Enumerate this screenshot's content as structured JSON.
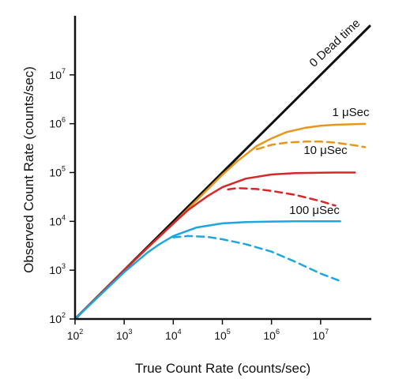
{
  "chart_data": {
    "type": "line",
    "xlabel": "True Count Rate (counts/sec)",
    "ylabel": "Observed Count Rate (counts/sec)",
    "x_scale": "log",
    "y_scale": "log",
    "xlim": [
      100,
      100000000
    ],
    "ylim": [
      100,
      100000000
    ],
    "grid": false,
    "x_ticks": [
      {
        "base": "10",
        "exp": "2",
        "value": 100
      },
      {
        "base": "10",
        "exp": "3",
        "value": 1000
      },
      {
        "base": "10",
        "exp": "4",
        "value": 10000
      },
      {
        "base": "10",
        "exp": "5",
        "value": 100000
      },
      {
        "base": "10",
        "exp": "6",
        "value": 1000000
      },
      {
        "base": "10",
        "exp": "7",
        "value": 10000000
      }
    ],
    "y_ticks": [
      {
        "base": "10",
        "exp": "2",
        "value": 100
      },
      {
        "base": "10",
        "exp": "3",
        "value": 1000
      },
      {
        "base": "10",
        "exp": "4",
        "value": 10000
      },
      {
        "base": "10",
        "exp": "5",
        "value": 100000
      },
      {
        "base": "10",
        "exp": "6",
        "value": 1000000
      },
      {
        "base": "10",
        "exp": "7",
        "value": 10000000
      }
    ],
    "series": [
      {
        "name": "0 Dead time",
        "color": "#111111",
        "style": "solid",
        "x": [
          100,
          100000000
        ],
        "y": [
          100,
          100000000
        ]
      },
      {
        "name": "1 μSec",
        "color": "#e8961c",
        "style": "solid",
        "x": [
          100,
          1000,
          10000,
          100000,
          200000,
          500000,
          1000000,
          2000000,
          5000000,
          10000000,
          20000000,
          50000000,
          80000000
        ],
        "y": [
          100,
          1000,
          9000,
          90000,
          170000,
          350000,
          500000,
          670000,
          830000,
          910000,
          950000,
          980000,
          990000
        ]
      },
      {
        "name": "1 μSec",
        "color": "#e8961c",
        "style": "dashed",
        "x": [
          500000,
          1000000,
          2000000,
          5000000,
          10000000,
          20000000,
          50000000,
          80000000
        ],
        "y": [
          300000,
          370000,
          410000,
          430000,
          430000,
          410000,
          360000,
          330000
        ]
      },
      {
        "name": "10 μSec",
        "color": "#d62828",
        "style": "solid",
        "x": [
          100,
          1000,
          3000,
          10000,
          20000,
          50000,
          100000,
          300000,
          1000000,
          3000000,
          10000000,
          20000000,
          50000000
        ],
        "y": [
          100,
          990,
          2900,
          9000,
          17000,
          33000,
          50000,
          75000,
          91000,
          97000,
          99000,
          100000,
          100000
        ]
      },
      {
        "name": "10 μSec",
        "color": "#d62828",
        "style": "dashed",
        "x": [
          130000,
          200000,
          500000,
          1000000,
          3000000,
          10000000,
          20000000
        ],
        "y": [
          45000,
          48000,
          46000,
          42000,
          35000,
          26000,
          21000
        ]
      },
      {
        "name": "100 μSec",
        "color": "#1ea6e0",
        "style": "solid",
        "x": [
          100,
          1000,
          3000,
          5000,
          10000,
          30000,
          100000,
          300000,
          1000000,
          3000000,
          10000000,
          25000000
        ],
        "y": [
          100,
          910,
          2300,
          3300,
          5000,
          7500,
          9100,
          9700,
          9900,
          10000,
          10000,
          10000
        ]
      },
      {
        "name": "100 μSec",
        "color": "#1ea6e0",
        "style": "dashed",
        "x": [
          10000,
          20000,
          50000,
          100000,
          300000,
          1000000,
          3000000,
          10000000,
          25000000
        ],
        "y": [
          4700,
          5000,
          4800,
          4300,
          3400,
          2400,
          1500,
          850,
          600
        ]
      }
    ],
    "annotations": [
      {
        "text": "0 Dead time",
        "series": 0
      },
      {
        "text": "1 μSec",
        "series": 1
      },
      {
        "text": "10 μSec",
        "series": 3
      },
      {
        "text": "100 μSec",
        "series": 5
      }
    ]
  }
}
